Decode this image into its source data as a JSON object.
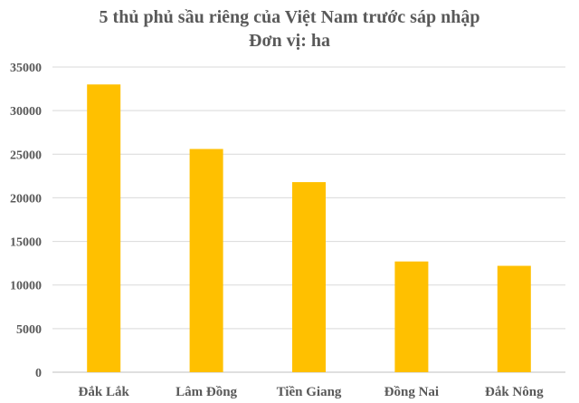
{
  "chart_data": {
    "type": "bar",
    "title": "5 thủ phủ sầu riêng của Việt Nam trước sáp nhập",
    "subtitle": "Đơn vị: ha",
    "categories": [
      "Đắk Lắk",
      "Lâm Đồng",
      "Tiền Giang",
      "Đồng Nai",
      "Đắk Nông"
    ],
    "values": [
      33000,
      25600,
      21800,
      12700,
      12200
    ],
    "ylim": [
      0,
      35000
    ],
    "yticks": [
      "0",
      "5000",
      "10000",
      "15000",
      "20000",
      "25000",
      "30000",
      "35000"
    ],
    "grid": true,
    "bar_color": "#FFC000"
  }
}
